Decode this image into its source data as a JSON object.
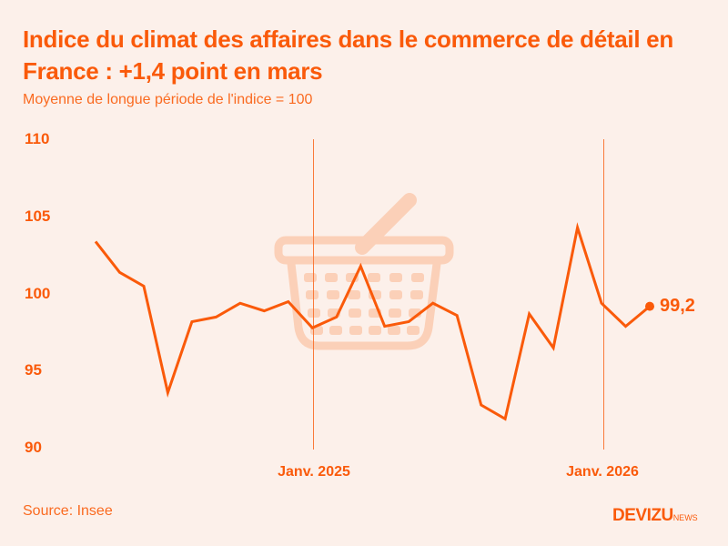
{
  "header": {
    "title": "Indice du climat des affaires dans le commerce de détail en France : +1,4 point en mars",
    "subtitle": "Moyenne de longue période de l'indice = 100"
  },
  "footer": {
    "source": "Source: Insee",
    "logo_main": "DEVIZU",
    "logo_sub": "NEWS"
  },
  "colors": {
    "background": "#fcf0ea",
    "accent": "#fa5a0a",
    "basket": "#fbd0b8"
  },
  "chart_data": {
    "type": "line",
    "title": "Indice du climat des affaires dans le commerce de détail en France : +1,4 point en mars",
    "subtitle": "Moyenne de longue période de l'indice = 100",
    "xlabel": "",
    "ylabel": "",
    "ylim": [
      90,
      110
    ],
    "yticks": [
      "110",
      "105",
      "100",
      "95",
      "90"
    ],
    "xtick_labels": [
      "Janv. 2025",
      "Janv. 2026"
    ],
    "grid": false,
    "x": [
      "2024-04",
      "2024-05",
      "2024-06",
      "2024-07",
      "2024-08",
      "2024-09",
      "2024-10",
      "2024-11",
      "2024-12",
      "2025-01",
      "2025-02",
      "2025-03",
      "2025-04",
      "2025-05",
      "2025-06",
      "2025-07",
      "2025-08",
      "2025-09",
      "2025-10",
      "2025-11",
      "2025-12",
      "2026-01",
      "2026-02",
      "2026-03"
    ],
    "series": [
      {
        "name": "Indice du climat des affaires",
        "values": [
          103.4,
          101.4,
          100.5,
          93.6,
          98.2,
          98.5,
          99.4,
          98.9,
          99.5,
          97.8,
          98.5,
          101.8,
          97.9,
          98.2,
          99.4,
          98.6,
          92.8,
          91.9,
          98.7,
          96.5,
          104.3,
          99.4,
          97.9,
          99.2
        ]
      }
    ],
    "annotations": [
      {
        "label": "99,2",
        "x": "2026-03",
        "y": 99.2
      }
    ]
  }
}
